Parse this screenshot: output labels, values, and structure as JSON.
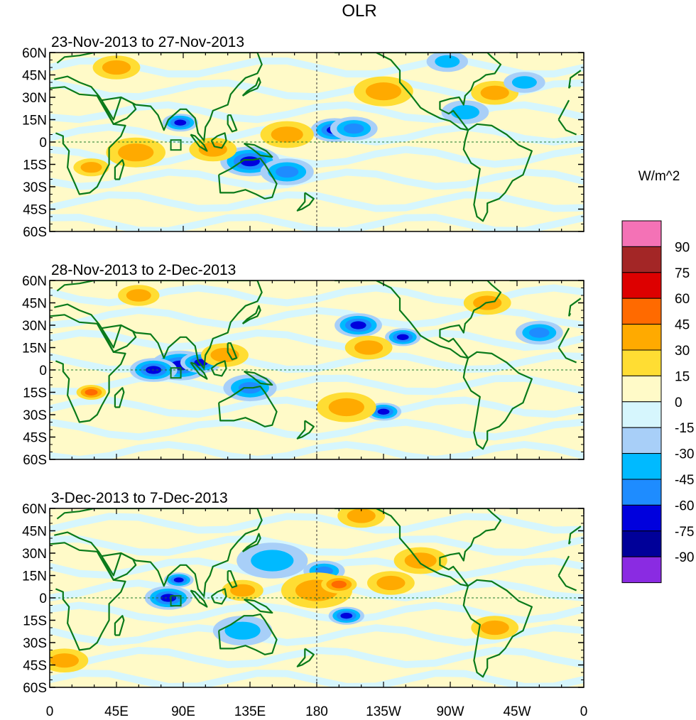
{
  "figure": {
    "title": "OLR",
    "units": "W/m^2"
  },
  "panels": [
    {
      "label": "23-Nov-2013 to 27-Nov-2013"
    },
    {
      "label": "28-Nov-2013 to 2-Dec-2013"
    },
    {
      "label": "3-Dec-2013 to 7-Dec-2013"
    }
  ],
  "axes": {
    "lat_labels": [
      "60N",
      "45N",
      "30N",
      "15N",
      "0",
      "15S",
      "30S",
      "45S",
      "60S"
    ],
    "lon_labels": [
      "0",
      "45E",
      "90E",
      "135E",
      "180",
      "135W",
      "90W",
      "45W",
      "0"
    ]
  },
  "colorbar": {
    "levels": [
      "90",
      "75",
      "60",
      "45",
      "30",
      "15",
      "0",
      "-15",
      "-30",
      "-45",
      "-60",
      "-75",
      "-90"
    ],
    "colors": [
      "#f472b6",
      "#a32626",
      "#dd0000",
      "#ff6a00",
      "#ffaa00",
      "#ffdd33",
      "#fffac8",
      "#d6f6fd",
      "#a8cff8",
      "#00baff",
      "#1e8cff",
      "#0000dd",
      "#000099",
      "#8a2be2"
    ]
  },
  "chart_data": {
    "type": "heatmap",
    "title": "OLR",
    "units": "W/m^2",
    "xlim": [
      0,
      360
    ],
    "ylim": [
      -60,
      60
    ],
    "panels": [
      {
        "label": "23-Nov-2013 to 27-Nov-2013",
        "blobs": [
          {
            "lon": 88,
            "lat": 13,
            "r": 6,
            "v": -75
          },
          {
            "lon": 135,
            "lat": -13,
            "r": 10,
            "v": -75
          },
          {
            "lon": 160,
            "lat": -20,
            "r": 9,
            "v": -45
          },
          {
            "lon": 192,
            "lat": 8,
            "r": 8,
            "v": -60
          },
          {
            "lon": 205,
            "lat": 9,
            "r": 8,
            "v": -45
          },
          {
            "lon": 28,
            "lat": -17,
            "r": 6,
            "v": 30
          },
          {
            "lon": 58,
            "lat": -7,
            "r": 10,
            "v": 30
          },
          {
            "lon": 110,
            "lat": -5,
            "r": 8,
            "v": 30
          },
          {
            "lon": 225,
            "lat": 34,
            "r": 10,
            "v": 30
          },
          {
            "lon": 160,
            "lat": 5,
            "r": 9,
            "v": 30
          },
          {
            "lon": 280,
            "lat": 20,
            "r": 8,
            "v": -30
          },
          {
            "lon": 45,
            "lat": 50,
            "r": 8,
            "v": 30
          },
          {
            "lon": 300,
            "lat": 33,
            "r": 8,
            "v": 30
          },
          {
            "lon": 320,
            "lat": 40,
            "r": 7,
            "v": -30
          },
          {
            "lon": 268,
            "lat": 54,
            "r": 7,
            "v": -30
          }
        ]
      },
      {
        "label": "28-Nov-2013 to 2-Dec-2013",
        "blobs": [
          {
            "lon": 88,
            "lat": 3,
            "r": 10,
            "v": -75
          },
          {
            "lon": 70,
            "lat": 0,
            "r": 8,
            "v": -60
          },
          {
            "lon": 102,
            "lat": 5,
            "r": 7,
            "v": -60
          },
          {
            "lon": 208,
            "lat": 30,
            "r": 8,
            "v": -60
          },
          {
            "lon": 238,
            "lat": 22,
            "r": 6,
            "v": -60
          },
          {
            "lon": 225,
            "lat": -28,
            "r": 6,
            "v": -60
          },
          {
            "lon": 135,
            "lat": -12,
            "r": 9,
            "v": -45
          },
          {
            "lon": 330,
            "lat": 25,
            "r": 8,
            "v": -45
          },
          {
            "lon": 28,
            "lat": -15,
            "r": 5,
            "v": 45
          },
          {
            "lon": 118,
            "lat": 10,
            "r": 8,
            "v": 30
          },
          {
            "lon": 200,
            "lat": -25,
            "r": 10,
            "v": 30
          },
          {
            "lon": 215,
            "lat": 15,
            "r": 8,
            "v": 30
          },
          {
            "lon": 60,
            "lat": 50,
            "r": 7,
            "v": 30
          },
          {
            "lon": 295,
            "lat": 45,
            "r": 8,
            "v": 30
          }
        ]
      },
      {
        "label": "3-Dec-2013 to 7-Dec-2013",
        "blobs": [
          {
            "lon": 87,
            "lat": 12,
            "r": 5,
            "v": -90
          },
          {
            "lon": 80,
            "lat": 0,
            "r": 8,
            "v": -60
          },
          {
            "lon": 200,
            "lat": -12,
            "r": 6,
            "v": -75
          },
          {
            "lon": 185,
            "lat": 18,
            "r": 7,
            "v": -45
          },
          {
            "lon": 130,
            "lat": -22,
            "r": 10,
            "v": -30
          },
          {
            "lon": 150,
            "lat": 25,
            "r": 12,
            "v": -30
          },
          {
            "lon": 180,
            "lat": 5,
            "r": 12,
            "v": 30
          },
          {
            "lon": 195,
            "lat": 9,
            "r": 6,
            "v": 45
          },
          {
            "lon": 130,
            "lat": 5,
            "r": 7,
            "v": 30
          },
          {
            "lon": 230,
            "lat": 10,
            "r": 8,
            "v": 30
          },
          {
            "lon": 10,
            "lat": -42,
            "r": 8,
            "v": 30
          },
          {
            "lon": 300,
            "lat": -20,
            "r": 8,
            "v": 30
          },
          {
            "lon": 210,
            "lat": 55,
            "r": 8,
            "v": 30
          },
          {
            "lon": 250,
            "lat": 25,
            "r": 9,
            "v": 30
          }
        ]
      }
    ]
  }
}
